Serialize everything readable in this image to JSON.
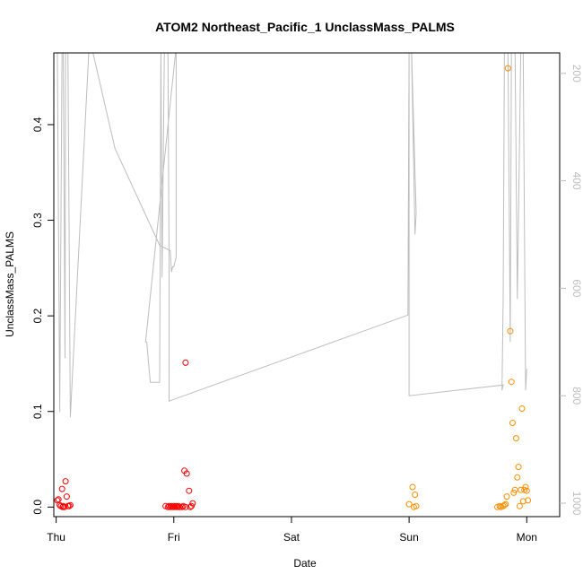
{
  "chart_data": {
    "type": "scatter",
    "title": "ATOM2 Northeast_Pacific_1 UnclassMass_PALMS",
    "xlabel": "Date",
    "ylabel": "UnclassMass_PALMS",
    "x_ticks": [
      "Thu",
      "Fri",
      "Sat",
      "Sun",
      "Mon"
    ],
    "xlim_days": [
      -0.02,
      4.28
    ],
    "ylim": [
      -0.01,
      0.475
    ],
    "y_ticks": [
      "0.0",
      "0.1",
      "0.2",
      "0.3",
      "0.4"
    ],
    "y_tick_values": [
      0,
      0.1,
      0.2,
      0.3,
      0.4
    ],
    "y2_ticks": [
      "200",
      "400",
      "600",
      "800",
      "1000"
    ],
    "y2_tick_values": [
      200,
      400,
      600,
      800,
      1000
    ],
    "y2lim": [
      1025,
      162
    ],
    "series": [
      {
        "color": "#ff0000",
        "points": [
          [
            0.01,
            0.007
          ],
          [
            0.02,
            0.008
          ],
          [
            0.03,
            0.002
          ],
          [
            0.04,
            0.001
          ],
          [
            0.05,
            0.019
          ],
          [
            0.055,
            0.0
          ],
          [
            0.06,
            0.001
          ],
          [
            0.07,
            0.0
          ],
          [
            0.08,
            0.027
          ],
          [
            0.09,
            0.011
          ],
          [
            0.1,
            0.001
          ],
          [
            0.11,
            0.001
          ],
          [
            0.12,
            0.002
          ],
          [
            0.93,
            0.001
          ],
          [
            0.95,
            0.0
          ],
          [
            0.96,
            0.001
          ],
          [
            0.97,
            0.0
          ],
          [
            0.98,
            0.001
          ],
          [
            0.99,
            0.0
          ],
          [
            1.0,
            0.001
          ],
          [
            1.01,
            0.0
          ],
          [
            1.02,
            0.001
          ],
          [
            1.03,
            0.0
          ],
          [
            1.04,
            0.001
          ],
          [
            1.05,
            0.0
          ],
          [
            1.07,
            0.0
          ],
          [
            1.08,
            0.001
          ],
          [
            1.1,
            0.0
          ],
          [
            1.09,
            0.038
          ],
          [
            1.11,
            0.035
          ],
          [
            1.13,
            0.017
          ],
          [
            1.14,
            0.0
          ],
          [
            1.15,
            0.001
          ],
          [
            1.1,
            0.151
          ],
          [
            1.16,
            0.004
          ]
        ]
      },
      {
        "color": "#ff8c00",
        "points": [
          [
            3.0,
            0.003
          ],
          [
            3.03,
            0.021
          ],
          [
            3.04,
            0.0
          ],
          [
            3.05,
            0.013
          ],
          [
            3.06,
            0.001
          ],
          [
            3.75,
            0.0
          ],
          [
            3.77,
            0.001
          ],
          [
            3.78,
            0.0
          ],
          [
            3.8,
            0.001
          ],
          [
            3.81,
            0.002
          ],
          [
            3.82,
            0.003
          ],
          [
            3.83,
            0.011
          ],
          [
            3.84,
            0.459
          ],
          [
            3.86,
            0.184
          ],
          [
            3.87,
            0.131
          ],
          [
            3.88,
            0.088
          ],
          [
            3.89,
            0.015
          ],
          [
            3.9,
            0.018
          ],
          [
            3.91,
            0.072
          ],
          [
            3.92,
            0.031
          ],
          [
            3.93,
            0.042
          ],
          [
            3.94,
            0.001
          ],
          [
            3.95,
            0.018
          ],
          [
            3.96,
            0.103
          ],
          [
            3.97,
            0.006
          ],
          [
            3.98,
            0.018
          ],
          [
            3.99,
            0.021
          ],
          [
            4.0,
            0.017
          ],
          [
            4.01,
            0.007
          ]
        ]
      }
    ],
    "secondary_line": {
      "color": "#bdbdbd",
      "units": "right axis",
      "points": [
        [
          0.0,
          150
        ],
        [
          0.01,
          150
        ],
        [
          0.03,
          830
        ],
        [
          0.05,
          150
        ],
        [
          0.06,
          150
        ],
        [
          0.075,
          730
        ],
        [
          0.08,
          150
        ],
        [
          0.1,
          150
        ],
        [
          0.12,
          840
        ],
        [
          0.28,
          150
        ],
        [
          0.3,
          150
        ],
        [
          0.5,
          340
        ],
        [
          0.88,
          520
        ],
        [
          0.97,
          530
        ],
        [
          0.98,
          570
        ],
        [
          0.99,
          560
        ],
        [
          1.0,
          560
        ],
        [
          1.02,
          542
        ],
        [
          1.02,
          150
        ],
        [
          0.76,
          700
        ],
        [
          0.77,
          700
        ],
        [
          0.79,
          750
        ],
        [
          0.8,
          775
        ],
        [
          0.82,
          775
        ],
        [
          0.84,
          775
        ],
        [
          0.86,
          775
        ],
        [
          0.88,
          775
        ],
        [
          0.89,
          150
        ],
        [
          0.9,
          580
        ],
        [
          0.92,
          150
        ],
        [
          0.95,
          150
        ],
        [
          0.96,
          550
        ],
        [
          0.96,
          810
        ],
        [
          2.99,
          650
        ],
        [
          3.0,
          150
        ],
        [
          3.02,
          150
        ],
        [
          3.05,
          500
        ],
        [
          3.06,
          460
        ],
        [
          3.02,
          150
        ],
        [
          3.0,
          150
        ],
        [
          3.0,
          800
        ],
        [
          3.8,
          780
        ],
        [
          3.79,
          790
        ],
        [
          3.8,
          620
        ],
        [
          3.81,
          150
        ],
        [
          3.82,
          150
        ],
        [
          3.84,
          150
        ],
        [
          3.86,
          700
        ],
        [
          3.87,
          150
        ],
        [
          3.9,
          150
        ],
        [
          3.92,
          620
        ],
        [
          3.95,
          150
        ],
        [
          3.97,
          150
        ],
        [
          3.99,
          790
        ],
        [
          4.0,
          750
        ]
      ]
    }
  }
}
